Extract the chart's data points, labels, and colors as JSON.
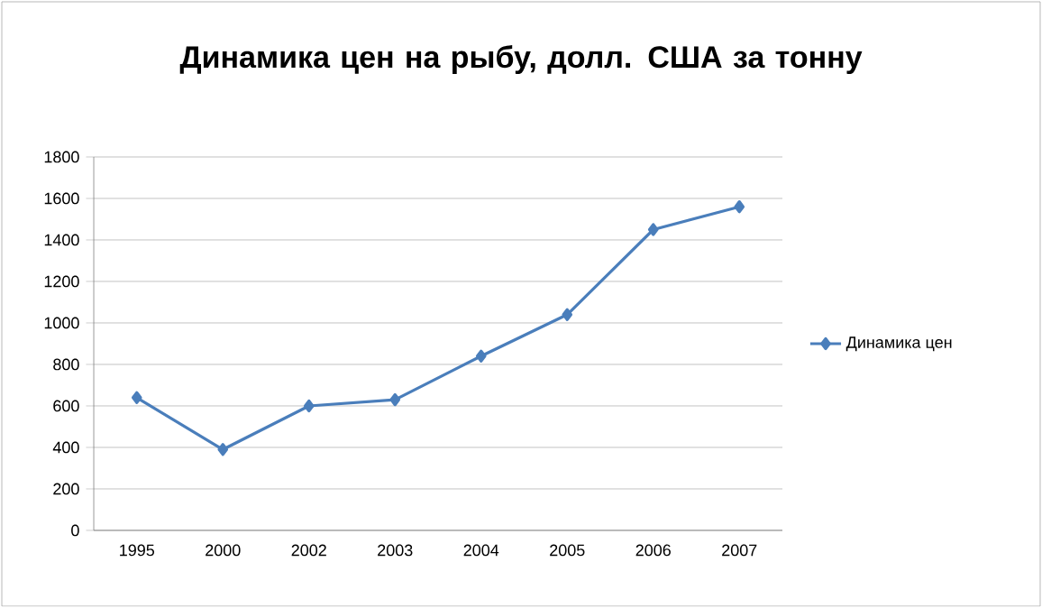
{
  "chart_data": {
    "type": "line",
    "title": "Динамика цен на рыбу, долл. США за тонну",
    "categories": [
      "1995",
      "2000",
      "2002",
      "2003",
      "2004",
      "2005",
      "2006",
      "2007"
    ],
    "series": [
      {
        "name": "Динамика цен",
        "color": "#4a7ebb",
        "values": [
          640,
          390,
          600,
          630,
          840,
          1040,
          1450,
          1560
        ]
      }
    ],
    "ylim": [
      0,
      1800
    ],
    "yticks": [
      0,
      200,
      400,
      600,
      800,
      1000,
      1200,
      1400,
      1600,
      1800
    ],
    "grid": "y",
    "legend": "right",
    "marker": "diamond",
    "line_style": "solid"
  }
}
